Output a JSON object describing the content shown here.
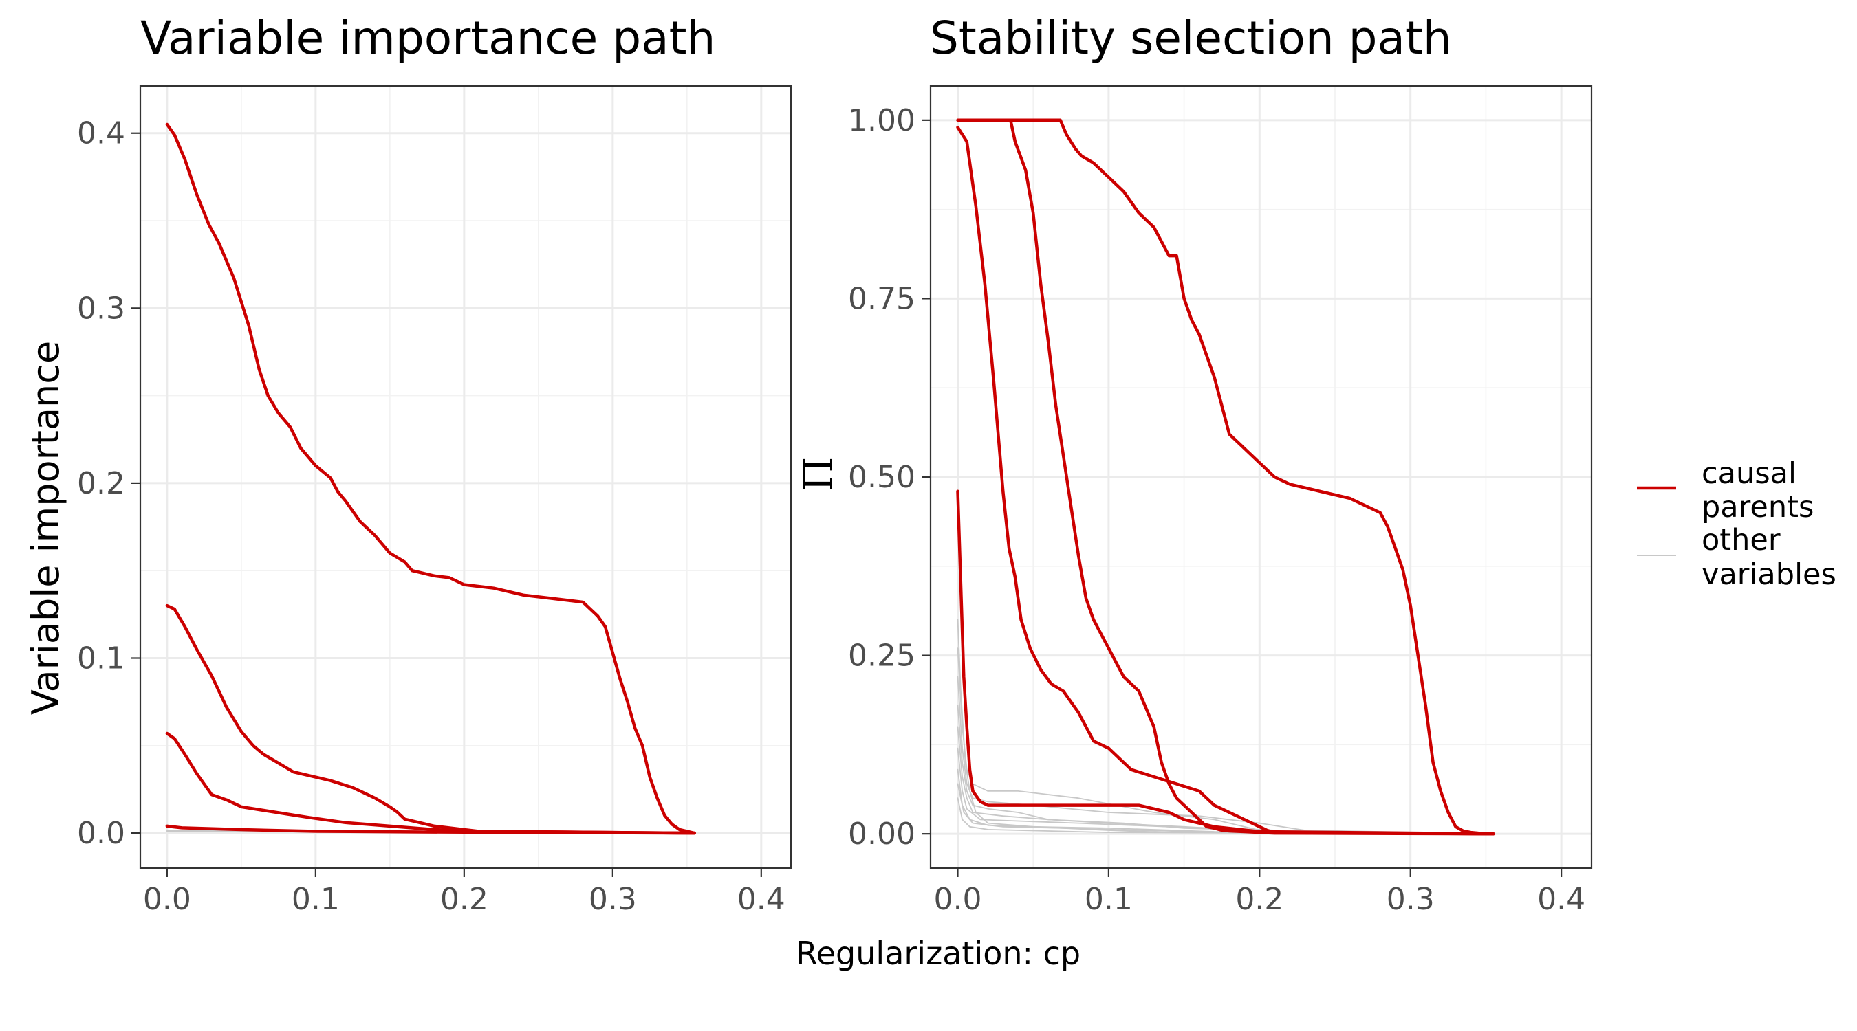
{
  "figure": {
    "shared_xlabel": "Regularization: cp"
  },
  "legend": {
    "items": [
      {
        "label_lines": [
          "causal",
          "parents"
        ],
        "color": "#cc0000"
      },
      {
        "label_lines": [
          "other",
          "variables"
        ],
        "color": "#c8c8c8"
      }
    ]
  },
  "chart_data": [
    {
      "type": "line",
      "title": "Variable importance path",
      "xlabel": "Regularization: cp",
      "ylabel": "Variable importance",
      "xlim": [
        -0.018,
        0.42
      ],
      "ylim": [
        -0.02,
        0.427
      ],
      "xticks": [
        0.0,
        0.1,
        0.2,
        0.3,
        0.4
      ],
      "xtick_labels": [
        "0.0",
        "0.1",
        "0.2",
        "0.3",
        "0.4"
      ],
      "yticks": [
        0.0,
        0.1,
        0.2,
        0.3,
        0.4
      ],
      "ytick_labels": [
        "0.0",
        "0.1",
        "0.2",
        "0.3",
        "0.4"
      ],
      "grid": true,
      "legend_position": "right",
      "series": [
        {
          "group": "causal parents",
          "color": "#cc0000",
          "x": [
            0.0,
            0.005,
            0.012,
            0.02,
            0.028,
            0.035,
            0.045,
            0.055,
            0.062,
            0.068,
            0.075,
            0.083,
            0.09,
            0.1,
            0.11,
            0.115,
            0.12,
            0.13,
            0.14,
            0.15,
            0.16,
            0.165,
            0.17,
            0.175,
            0.18,
            0.19,
            0.2,
            0.21,
            0.22,
            0.24,
            0.26,
            0.28,
            0.285,
            0.29,
            0.295,
            0.3,
            0.305,
            0.31,
            0.315,
            0.32,
            0.325,
            0.33,
            0.335,
            0.34,
            0.345,
            0.35,
            0.355
          ],
          "y": [
            0.405,
            0.399,
            0.385,
            0.365,
            0.348,
            0.337,
            0.317,
            0.29,
            0.265,
            0.25,
            0.24,
            0.232,
            0.22,
            0.21,
            0.203,
            0.195,
            0.19,
            0.178,
            0.17,
            0.16,
            0.155,
            0.15,
            0.149,
            0.148,
            0.147,
            0.146,
            0.142,
            0.141,
            0.14,
            0.136,
            0.134,
            0.132,
            0.128,
            0.124,
            0.118,
            0.103,
            0.088,
            0.075,
            0.06,
            0.05,
            0.032,
            0.02,
            0.01,
            0.005,
            0.002,
            0.001,
            0.0
          ]
        },
        {
          "group": "causal parents",
          "color": "#cc0000",
          "x": [
            0.0,
            0.005,
            0.012,
            0.02,
            0.03,
            0.04,
            0.05,
            0.058,
            0.065,
            0.075,
            0.085,
            0.095,
            0.11,
            0.125,
            0.14,
            0.15,
            0.155,
            0.16,
            0.17,
            0.18,
            0.2,
            0.21,
            0.355
          ],
          "y": [
            0.13,
            0.128,
            0.118,
            0.105,
            0.09,
            0.072,
            0.058,
            0.05,
            0.045,
            0.04,
            0.035,
            0.033,
            0.03,
            0.026,
            0.02,
            0.015,
            0.012,
            0.008,
            0.006,
            0.004,
            0.002,
            0.001,
            0.0
          ]
        },
        {
          "group": "causal parents",
          "color": "#cc0000",
          "x": [
            0.0,
            0.005,
            0.012,
            0.02,
            0.03,
            0.04,
            0.05,
            0.065,
            0.08,
            0.095,
            0.12,
            0.15,
            0.18,
            0.21,
            0.355
          ],
          "y": [
            0.057,
            0.054,
            0.045,
            0.034,
            0.022,
            0.019,
            0.015,
            0.013,
            0.011,
            0.009,
            0.006,
            0.004,
            0.002,
            0.001,
            0.0
          ]
        },
        {
          "group": "causal parents",
          "color": "#cc0000",
          "x": [
            0.0,
            0.01,
            0.05,
            0.1,
            0.2,
            0.355
          ],
          "y": [
            0.004,
            0.003,
            0.002,
            0.001,
            0.0005,
            0.0
          ]
        },
        {
          "group": "other variables",
          "color": "#c8c8c8",
          "x": [
            0.0,
            0.05,
            0.1,
            0.15,
            0.2,
            0.3,
            0.355
          ],
          "y": [
            0.0015,
            0.0012,
            0.0009,
            0.0006,
            0.0003,
            0.0001,
            0.0
          ]
        },
        {
          "group": "other variables",
          "color": "#c8c8c8",
          "x": [
            0.0,
            0.06,
            0.14,
            0.25,
            0.355
          ],
          "y": [
            0.001,
            0.0008,
            0.0005,
            0.0002,
            0.0
          ]
        }
      ]
    },
    {
      "type": "line",
      "title": "Stability selection path",
      "xlabel": "Regularization: cp",
      "ylabel": "Π",
      "xlim": [
        -0.018,
        0.42
      ],
      "ylim": [
        -0.048,
        1.048
      ],
      "xticks": [
        0.0,
        0.1,
        0.2,
        0.3,
        0.4
      ],
      "xtick_labels": [
        "0.0",
        "0.1",
        "0.2",
        "0.3",
        "0.4"
      ],
      "yticks": [
        0.0,
        0.25,
        0.5,
        0.75,
        1.0
      ],
      "ytick_labels": [
        "0.00",
        "0.25",
        "0.50",
        "0.75",
        "1.00"
      ],
      "grid": true,
      "legend_position": "right",
      "series": [
        {
          "group": "causal parents",
          "color": "#cc0000",
          "x": [
            0.0,
            0.03,
            0.068,
            0.072,
            0.078,
            0.082,
            0.09,
            0.1,
            0.11,
            0.12,
            0.13,
            0.14,
            0.145,
            0.15,
            0.155,
            0.16,
            0.165,
            0.17,
            0.175,
            0.18,
            0.19,
            0.2,
            0.21,
            0.22,
            0.24,
            0.26,
            0.28,
            0.285,
            0.29,
            0.295,
            0.3,
            0.305,
            0.31,
            0.315,
            0.32,
            0.325,
            0.33,
            0.335,
            0.34,
            0.345,
            0.35,
            0.355
          ],
          "y": [
            1.0,
            1.0,
            1.0,
            0.98,
            0.96,
            0.95,
            0.94,
            0.92,
            0.9,
            0.87,
            0.85,
            0.81,
            0.81,
            0.75,
            0.72,
            0.7,
            0.67,
            0.64,
            0.6,
            0.56,
            0.54,
            0.52,
            0.5,
            0.49,
            0.48,
            0.47,
            0.45,
            0.43,
            0.4,
            0.37,
            0.32,
            0.25,
            0.18,
            0.1,
            0.06,
            0.03,
            0.01,
            0.004,
            0.002,
            0.001,
            0.0005,
            0.0
          ]
        },
        {
          "group": "causal parents",
          "color": "#cc0000",
          "x": [
            0.035,
            0.038,
            0.045,
            0.05,
            0.055,
            0.06,
            0.065,
            0.07,
            0.075,
            0.08,
            0.085,
            0.09,
            0.095,
            0.1,
            0.11,
            0.12,
            0.13,
            0.135,
            0.14,
            0.145,
            0.15,
            0.155,
            0.16,
            0.165,
            0.17,
            0.175,
            0.18,
            0.19,
            0.2,
            0.21,
            0.355
          ],
          "y": [
            1.0,
            0.97,
            0.93,
            0.87,
            0.77,
            0.69,
            0.6,
            0.53,
            0.46,
            0.39,
            0.33,
            0.3,
            0.28,
            0.26,
            0.22,
            0.2,
            0.15,
            0.1,
            0.07,
            0.05,
            0.04,
            0.03,
            0.02,
            0.01,
            0.008,
            0.005,
            0.004,
            0.003,
            0.002,
            0.001,
            0.0
          ]
        },
        {
          "group": "causal parents",
          "color": "#cc0000",
          "x": [
            0.0,
            0.006,
            0.012,
            0.018,
            0.024,
            0.03,
            0.034,
            0.038,
            0.042,
            0.048,
            0.055,
            0.062,
            0.07,
            0.08,
            0.09,
            0.1,
            0.115,
            0.13,
            0.145,
            0.16,
            0.17,
            0.18,
            0.19,
            0.2,
            0.205,
            0.21,
            0.355
          ],
          "y": [
            0.99,
            0.97,
            0.88,
            0.77,
            0.63,
            0.48,
            0.4,
            0.36,
            0.3,
            0.26,
            0.23,
            0.21,
            0.2,
            0.17,
            0.13,
            0.12,
            0.09,
            0.08,
            0.07,
            0.06,
            0.04,
            0.03,
            0.02,
            0.01,
            0.005,
            0.002,
            0.0
          ]
        },
        {
          "group": "causal parents",
          "color": "#cc0000",
          "x": [
            0.0,
            0.002,
            0.004,
            0.006,
            0.008,
            0.01,
            0.015,
            0.02,
            0.03,
            0.05,
            0.08,
            0.1,
            0.12,
            0.14,
            0.15,
            0.17,
            0.2,
            0.355
          ],
          "y": [
            0.48,
            0.35,
            0.22,
            0.15,
            0.09,
            0.06,
            0.045,
            0.04,
            0.04,
            0.04,
            0.04,
            0.04,
            0.04,
            0.03,
            0.02,
            0.01,
            0.003,
            0.0
          ]
        },
        {
          "group": "other variables",
          "color": "#c8c8c8",
          "x": [
            0.0,
            0.002,
            0.005,
            0.008,
            0.012,
            0.02,
            0.05,
            0.1,
            0.14,
            0.355
          ],
          "y": [
            0.3,
            0.2,
            0.1,
            0.06,
            0.03,
            0.015,
            0.01,
            0.005,
            0.002,
            0.0
          ]
        },
        {
          "group": "other variables",
          "color": "#c8c8c8",
          "x": [
            0.0,
            0.003,
            0.006,
            0.01,
            0.02,
            0.04,
            0.08,
            0.13,
            0.17,
            0.2,
            0.355
          ],
          "y": [
            0.26,
            0.15,
            0.09,
            0.07,
            0.06,
            0.06,
            0.05,
            0.03,
            0.02,
            0.005,
            0.0
          ]
        },
        {
          "group": "other variables",
          "color": "#c8c8c8",
          "x": [
            0.0,
            0.003,
            0.006,
            0.01,
            0.02,
            0.05,
            0.1,
            0.16,
            0.2,
            0.23,
            0.355
          ],
          "y": [
            0.22,
            0.12,
            0.07,
            0.05,
            0.045,
            0.04,
            0.03,
            0.025,
            0.015,
            0.005,
            0.0
          ]
        },
        {
          "group": "other variables",
          "color": "#c8c8c8",
          "x": [
            0.0,
            0.003,
            0.006,
            0.01,
            0.02,
            0.04,
            0.06,
            0.1,
            0.15,
            0.19,
            0.22,
            0.355
          ],
          "y": [
            0.18,
            0.1,
            0.06,
            0.04,
            0.035,
            0.03,
            0.02,
            0.015,
            0.01,
            0.005,
            0.002,
            0.0
          ]
        },
        {
          "group": "other variables",
          "color": "#c8c8c8",
          "x": [
            0.0,
            0.003,
            0.006,
            0.01,
            0.03,
            0.06,
            0.11,
            0.15,
            0.25,
            0.355
          ],
          "y": [
            0.15,
            0.08,
            0.05,
            0.03,
            0.025,
            0.02,
            0.015,
            0.008,
            0.002,
            0.0
          ]
        },
        {
          "group": "other variables",
          "color": "#c8c8c8",
          "x": [
            0.0,
            0.003,
            0.006,
            0.015,
            0.04,
            0.08,
            0.14,
            0.2,
            0.24,
            0.355
          ],
          "y": [
            0.12,
            0.06,
            0.035,
            0.02,
            0.018,
            0.015,
            0.01,
            0.006,
            0.002,
            0.0
          ]
        },
        {
          "group": "other variables",
          "color": "#c8c8c8",
          "x": [
            0.0,
            0.003,
            0.008,
            0.02,
            0.05,
            0.1,
            0.17,
            0.355
          ],
          "y": [
            0.09,
            0.04,
            0.02,
            0.012,
            0.01,
            0.008,
            0.003,
            0.0
          ]
        },
        {
          "group": "other variables",
          "color": "#c8c8c8",
          "x": [
            0.0,
            0.004,
            0.01,
            0.03,
            0.07,
            0.12,
            0.18,
            0.355
          ],
          "y": [
            0.07,
            0.03,
            0.015,
            0.01,
            0.008,
            0.005,
            0.002,
            0.0
          ]
        },
        {
          "group": "other variables",
          "color": "#c8c8c8",
          "x": [
            0.0,
            0.003,
            0.008,
            0.02,
            0.06,
            0.1,
            0.355
          ],
          "y": [
            0.05,
            0.02,
            0.01,
            0.006,
            0.004,
            0.002,
            0.0
          ]
        }
      ]
    }
  ]
}
